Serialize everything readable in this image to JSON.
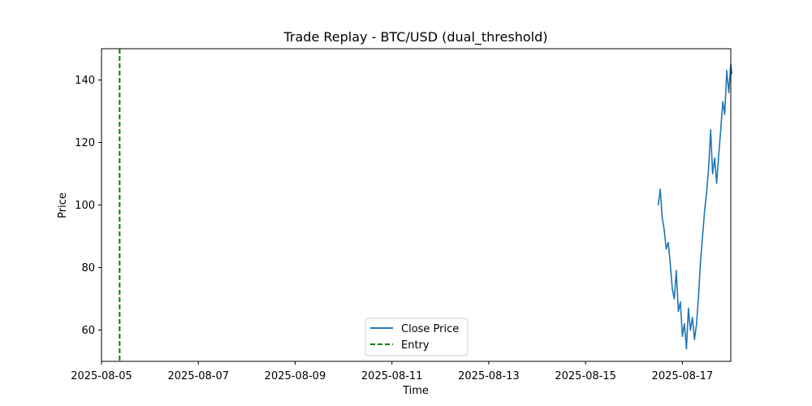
{
  "chart_data": {
    "type": "line",
    "title": "Trade Replay - BTC/USD (dual_threshold)",
    "xlabel": "Time",
    "ylabel": "Price",
    "xlim": [
      "2025-08-05",
      "2025-08-18"
    ],
    "ylim": [
      50,
      150
    ],
    "x_ticks": [
      "2025-08-05",
      "2025-08-07",
      "2025-08-09",
      "2025-08-11",
      "2025-08-13",
      "2025-08-15",
      "2025-08-17"
    ],
    "y_ticks": [
      60,
      80,
      100,
      120,
      140
    ],
    "grid": false,
    "legend_position": "lower-center",
    "series": [
      {
        "name": "Close Price",
        "color": "#1f77b4",
        "style": "solid",
        "points": [
          {
            "x": "2025-08-16 12:00",
            "y": 100
          },
          {
            "x": "2025-08-16 13:00",
            "y": 105
          },
          {
            "x": "2025-08-16 14:00",
            "y": 96
          },
          {
            "x": "2025-08-16 15:00",
            "y": 92
          },
          {
            "x": "2025-08-16 16:00",
            "y": 86
          },
          {
            "x": "2025-08-16 17:00",
            "y": 88
          },
          {
            "x": "2025-08-16 18:00",
            "y": 81
          },
          {
            "x": "2025-08-16 19:00",
            "y": 73
          },
          {
            "x": "2025-08-16 20:00",
            "y": 70
          },
          {
            "x": "2025-08-16 21:00",
            "y": 79
          },
          {
            "x": "2025-08-16 22:00",
            "y": 66
          },
          {
            "x": "2025-08-16 23:00",
            "y": 69
          },
          {
            "x": "2025-08-17 00:00",
            "y": 58
          },
          {
            "x": "2025-08-17 01:00",
            "y": 62
          },
          {
            "x": "2025-08-17 02:00",
            "y": 54
          },
          {
            "x": "2025-08-17 03:00",
            "y": 67
          },
          {
            "x": "2025-08-17 04:00",
            "y": 60
          },
          {
            "x": "2025-08-17 05:00",
            "y": 64
          },
          {
            "x": "2025-08-17 06:00",
            "y": 57
          },
          {
            "x": "2025-08-17 07:00",
            "y": 62
          },
          {
            "x": "2025-08-17 08:00",
            "y": 71
          },
          {
            "x": "2025-08-17 09:00",
            "y": 82
          },
          {
            "x": "2025-08-17 10:00",
            "y": 90
          },
          {
            "x": "2025-08-17 11:00",
            "y": 98
          },
          {
            "x": "2025-08-17 12:00",
            "y": 104
          },
          {
            "x": "2025-08-17 13:00",
            "y": 112
          },
          {
            "x": "2025-08-17 14:00",
            "y": 124
          },
          {
            "x": "2025-08-17 15:00",
            "y": 110
          },
          {
            "x": "2025-08-17 16:00",
            "y": 115
          },
          {
            "x": "2025-08-17 17:00",
            "y": 107
          },
          {
            "x": "2025-08-17 18:00",
            "y": 116
          },
          {
            "x": "2025-08-17 19:00",
            "y": 124
          },
          {
            "x": "2025-08-17 20:00",
            "y": 133
          },
          {
            "x": "2025-08-17 21:00",
            "y": 129
          },
          {
            "x": "2025-08-17 22:00",
            "y": 143
          },
          {
            "x": "2025-08-17 23:00",
            "y": 136
          },
          {
            "x": "2025-08-18 00:00",
            "y": 145
          },
          {
            "x": "2025-08-18 00:30",
            "y": 142
          }
        ]
      },
      {
        "name": "Entry",
        "color": "#008000",
        "style": "dashed",
        "x": "2025-08-05 09:00"
      }
    ]
  }
}
